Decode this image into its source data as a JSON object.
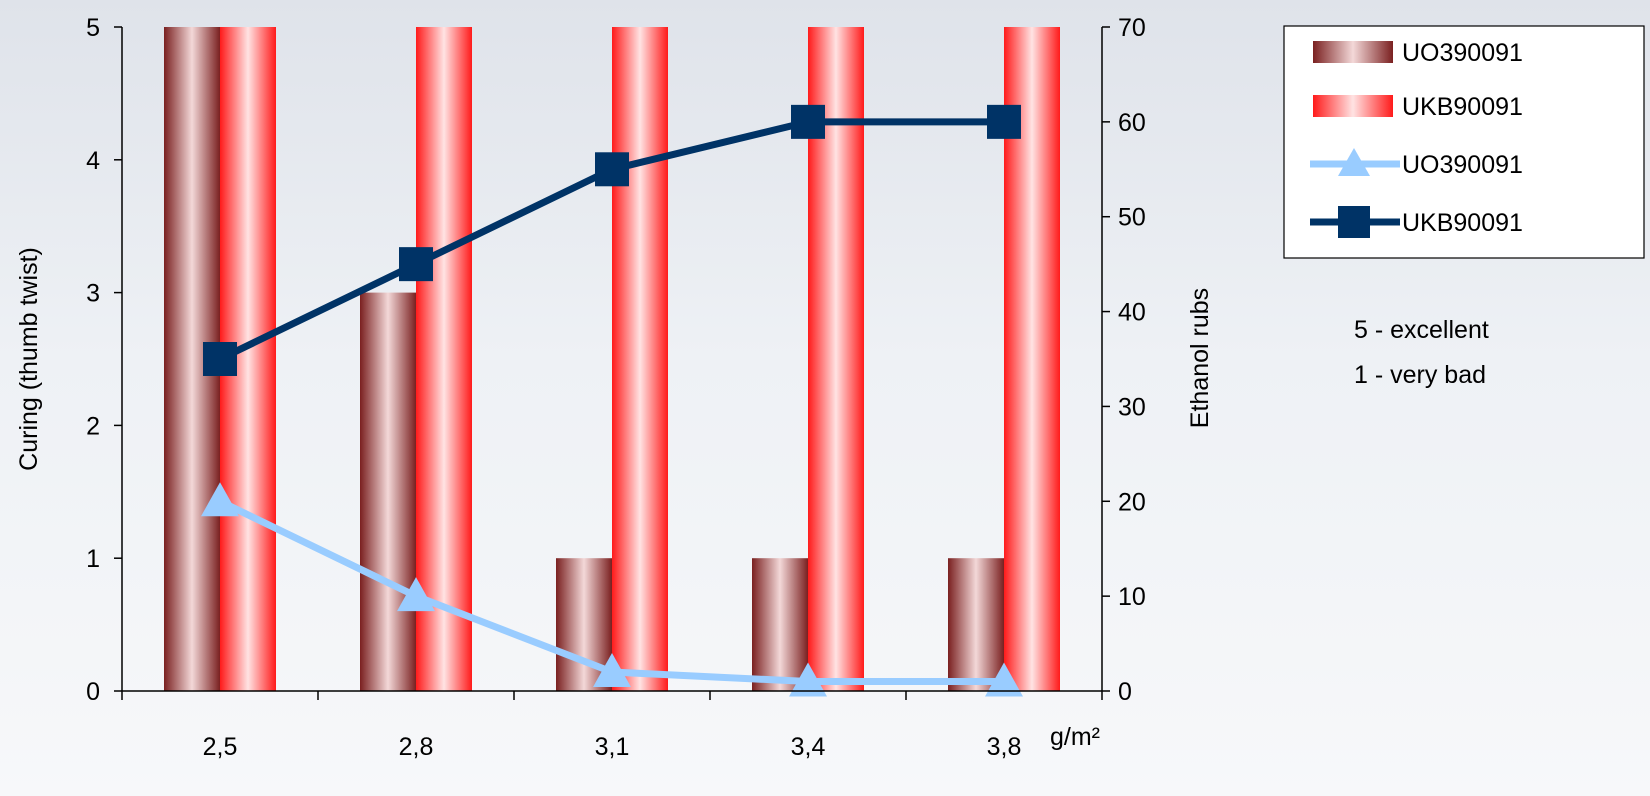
{
  "chart_data": {
    "type": "bar",
    "categories": [
      "2,5",
      "2,8",
      "3,1",
      "3,4",
      "3,8"
    ],
    "x_unit_label": "g/m²",
    "bar_series": [
      {
        "name": "UO390091",
        "axis": "left",
        "values": [
          5,
          3,
          1,
          1,
          1
        ],
        "color": "#8b2f2f"
      },
      {
        "name": "UKB90091",
        "axis": "left",
        "values": [
          5,
          5,
          5,
          5,
          5
        ],
        "color": "#ff2a2a"
      }
    ],
    "line_series": [
      {
        "name": "UO390091",
        "axis": "right",
        "marker": "triangle",
        "values": [
          20,
          10,
          2,
          1,
          1
        ],
        "color": "#99ccff"
      },
      {
        "name": "UKB90091",
        "axis": "right",
        "marker": "square",
        "values": [
          35,
          45,
          55,
          60,
          60
        ],
        "color": "#003366"
      }
    ],
    "ylabel": "Curing (thumb twist)",
    "ylim": [
      0,
      5
    ],
    "yticks": [
      "0",
      "1",
      "2",
      "3",
      "4",
      "5"
    ],
    "y2label": "Ethanol rubs",
    "y2lim": [
      0,
      70
    ],
    "y2ticks": [
      "0",
      "10",
      "20",
      "30",
      "40",
      "50",
      "60",
      "70"
    ],
    "legend_position": "top-right",
    "grid": false,
    "notes": [
      "5 - excellent",
      "1 - very bad"
    ]
  }
}
